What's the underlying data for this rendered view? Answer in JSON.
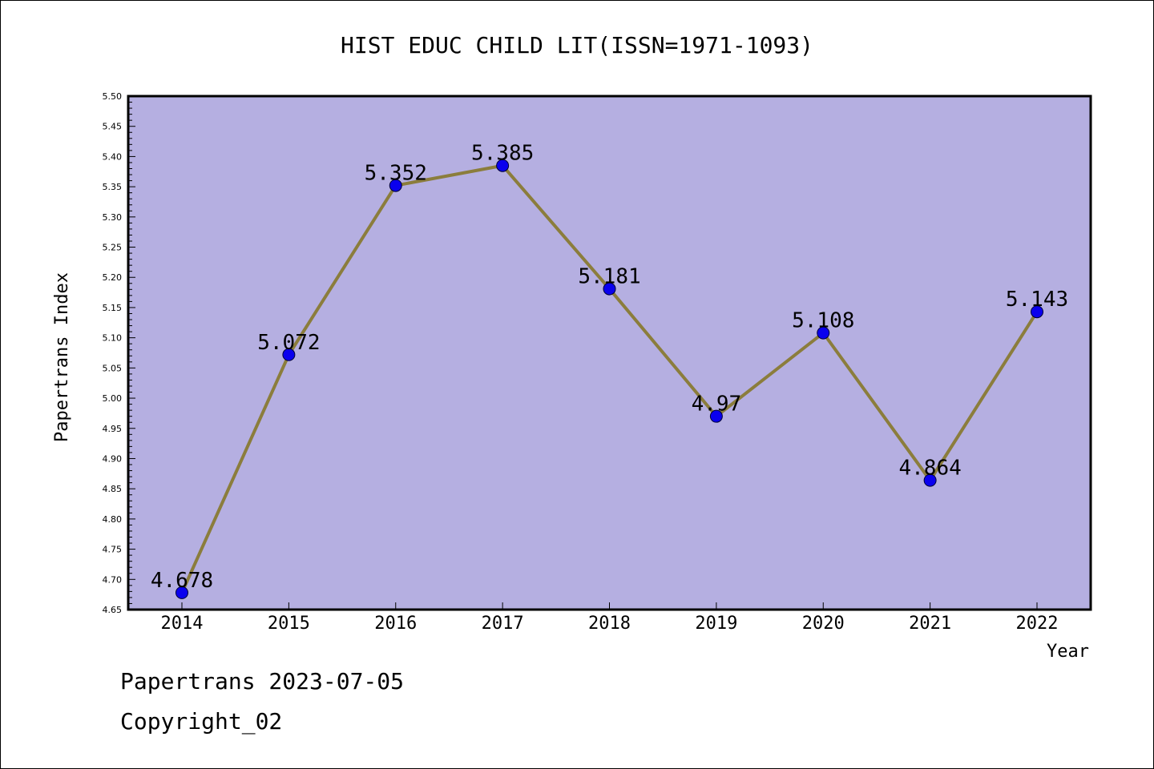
{
  "colors": {
    "plot_background": "#b5afe1",
    "line": "#8b7d3c",
    "marker_fill": "#0a00ee",
    "axis": "#000000"
  },
  "chart_data": {
    "type": "line",
    "title": "HIST EDUC CHILD LIT(ISSN=1971-1093)",
    "xlabel": "Year",
    "ylabel": "Papertrans Index",
    "ylim": [
      4.65,
      5.5
    ],
    "ytick_step": 0.05,
    "yticks": [
      "4.65",
      "4.70",
      "4.75",
      "4.80",
      "4.85",
      "4.90",
      "4.95",
      "5.00",
      "5.05",
      "5.10",
      "5.15",
      "5.20",
      "5.25",
      "5.30",
      "5.35",
      "5.40",
      "5.45",
      "5.50"
    ],
    "grid": false,
    "x": [
      "2014",
      "2015",
      "2016",
      "2017",
      "2018",
      "2019",
      "2020",
      "2021",
      "2022"
    ],
    "values": [
      4.678,
      5.072,
      5.352,
      5.385,
      5.181,
      4.97,
      5.108,
      4.864,
      5.143
    ],
    "data_labels": [
      "4.678",
      "5.072",
      "5.352",
      "5.385",
      "5.181",
      "4.97",
      "5.108",
      "4.864",
      "5.143"
    ]
  },
  "footer": {
    "line1": "Papertrans 2023-07-05",
    "line2": "Copyright_02"
  }
}
